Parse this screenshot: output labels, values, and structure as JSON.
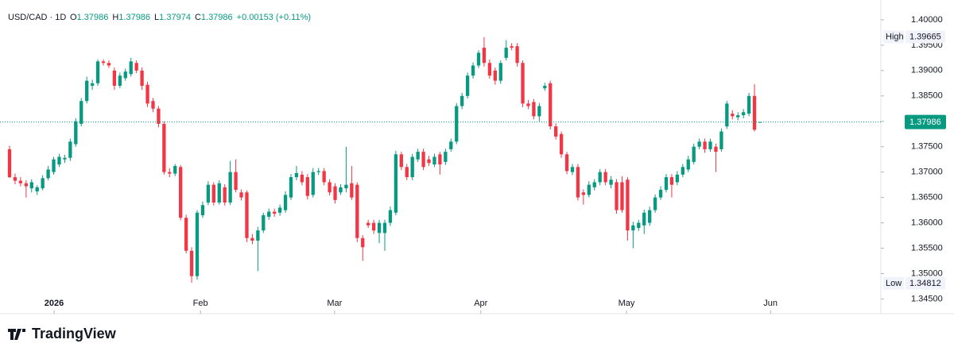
{
  "chart_data": {
    "type": "candlestick",
    "symbol": "USD/CAD · 1D",
    "ohlc_header": [
      {
        "label": "O",
        "value": 1.37986
      },
      {
        "label": "H",
        "value": 1.37986
      },
      {
        "label": "L",
        "value": 1.37974
      },
      {
        "label": "C",
        "value": 1.37986
      }
    ],
    "change": "+0.00153 (+0.11%)",
    "up_color": "#089981",
    "down_color": "#f23645",
    "open": [
      1.3745,
      1.369,
      1.3683,
      1.3678,
      1.3668,
      1.3662,
      1.3668,
      1.3688,
      1.37,
      1.3715,
      1.3725,
      1.3728,
      1.3755,
      1.3795,
      1.384,
      1.387,
      1.3875,
      1.3918,
      1.3915,
      1.39,
      1.387,
      1.3885,
      1.3893,
      1.3915,
      1.39,
      1.3872,
      1.384,
      1.3825,
      1.3795,
      1.37,
      1.3697,
      1.371,
      1.361,
      1.3545,
      1.3495,
      1.3615,
      1.364,
      1.3675,
      1.364,
      1.367,
      1.364,
      1.37,
      1.366,
      1.366,
      1.357,
      1.3565,
      1.3585,
      1.3612,
      1.3622,
      1.362,
      1.3625,
      1.365,
      1.369,
      1.3695,
      1.369,
      1.3655,
      1.37,
      1.3702,
      1.368,
      1.3672,
      1.366,
      1.3668,
      1.3678,
      1.3675,
      1.357,
      1.36,
      1.36,
      1.358,
      1.358,
      1.36,
      1.362,
      1.3735,
      1.371,
      1.369,
      1.3725,
      1.374,
      1.3725,
      1.3715,
      1.3735,
      1.372,
      1.3745,
      1.376,
      1.383,
      1.385,
      1.389,
      1.391,
      1.3945,
      1.3915,
      1.39,
      1.388,
      1.3925,
      1.3948,
      1.3948,
      1.3915,
      1.3835,
      1.3838,
      1.381,
      1.3865,
      1.3875,
      1.379,
      1.3775,
      1.3735,
      1.37,
      1.371,
      1.366,
      1.3655,
      1.367,
      1.368,
      1.37,
      1.3675,
      1.368,
      1.368,
      1.3685,
      1.3585,
      1.359,
      1.3595,
      1.36,
      1.3625,
      1.365,
      1.3665,
      1.369,
      1.368,
      1.3695,
      1.3705,
      1.372,
      1.375,
      1.376,
      1.3745,
      1.375,
      1.3745,
      1.379,
      1.3815,
      1.3808,
      1.3812,
      1.3815,
      1.385,
      1.37986
    ],
    "high": [
      1.3752,
      1.3697,
      1.369,
      1.3684,
      1.3686,
      1.3674,
      1.3694,
      1.3712,
      1.373,
      1.3736,
      1.3734,
      1.3766,
      1.3806,
      1.3846,
      1.3888,
      1.3882,
      1.3922,
      1.3922,
      1.392,
      1.3906,
      1.3896,
      1.3904,
      1.3925,
      1.392,
      1.3906,
      1.3878,
      1.3846,
      1.383,
      1.38,
      1.3708,
      1.3716,
      1.3714,
      1.3616,
      1.3552,
      1.3625,
      1.3642,
      1.3682,
      1.368,
      1.3684,
      1.3676,
      1.3722,
      1.3725,
      1.3666,
      1.3664,
      1.3578,
      1.3592,
      1.362,
      1.3628,
      1.3628,
      1.3636,
      1.3662,
      1.3696,
      1.3712,
      1.3702,
      1.3696,
      1.3708,
      1.3708,
      1.3708,
      1.3686,
      1.3678,
      1.3676,
      1.375,
      1.3712,
      1.368,
      1.3576,
      1.3606,
      1.3606,
      1.3606,
      1.3606,
      1.3632,
      1.3742,
      1.374,
      1.3716,
      1.3736,
      1.3746,
      1.3746,
      1.3732,
      1.3736,
      1.374,
      1.3746,
      1.3766,
      1.3836,
      1.3856,
      1.3896,
      1.3916,
      1.394,
      1.3966,
      1.3922,
      1.3906,
      1.392,
      1.396,
      1.3954,
      1.3954,
      1.392,
      1.3842,
      1.3844,
      1.3836,
      1.3876,
      1.388,
      1.3796,
      1.378,
      1.374,
      1.3716,
      1.3716,
      1.3666,
      1.3682,
      1.3686,
      1.3706,
      1.3706,
      1.3692,
      1.3686,
      1.3692,
      1.369,
      1.3602,
      1.3606,
      1.3626,
      1.3632,
      1.3656,
      1.3672,
      1.3696,
      1.3696,
      1.3702,
      1.3716,
      1.3732,
      1.3756,
      1.3766,
      1.3766,
      1.3766,
      1.3756,
      1.3786,
      1.384,
      1.3822,
      1.3818,
      1.3824,
      1.3856,
      1.3873,
      1.37986
    ],
    "low": [
      1.3688,
      1.3676,
      1.3672,
      1.365,
      1.366,
      1.3655,
      1.3664,
      1.3684,
      1.3695,
      1.371,
      1.3718,
      1.3722,
      1.375,
      1.379,
      1.3835,
      1.3862,
      1.387,
      1.391,
      1.3905,
      1.3862,
      1.3865,
      1.388,
      1.3888,
      1.3895,
      1.3862,
      1.3828,
      1.3818,
      1.3788,
      1.3695,
      1.369,
      1.3692,
      1.3605,
      1.354,
      1.3482,
      1.3488,
      1.361,
      1.3635,
      1.3634,
      1.3636,
      1.3634,
      1.3635,
      1.366,
      1.3644,
      1.3562,
      1.3558,
      1.3505,
      1.358,
      1.3606,
      1.3612,
      1.3614,
      1.362,
      1.3645,
      1.3684,
      1.3674,
      1.3646,
      1.365,
      1.3694,
      1.3674,
      1.3654,
      1.3638,
      1.3655,
      1.366,
      1.3645,
      1.3562,
      1.3525,
      1.359,
      1.3578,
      1.356,
      1.3545,
      1.3594,
      1.3615,
      1.3704,
      1.3684,
      1.3684,
      1.372,
      1.3704,
      1.3712,
      1.371,
      1.3695,
      1.3714,
      1.374,
      1.3755,
      1.3824,
      1.3845,
      1.3884,
      1.3905,
      1.3908,
      1.3884,
      1.3872,
      1.3874,
      1.392,
      1.394,
      1.3908,
      1.3828,
      1.3824,
      1.3804,
      1.38,
      1.386,
      1.3784,
      1.3764,
      1.3728,
      1.3696,
      1.3694,
      1.3644,
      1.3636,
      1.365,
      1.3664,
      1.3674,
      1.3674,
      1.3668,
      1.3618,
      1.362,
      1.3565,
      1.355,
      1.3584,
      1.3578,
      1.3594,
      1.362,
      1.3645,
      1.366,
      1.365,
      1.3674,
      1.369,
      1.37,
      1.3715,
      1.3745,
      1.3738,
      1.374,
      1.37,
      1.374,
      1.3785,
      1.3804,
      1.3802,
      1.3806,
      1.381,
      1.378,
      1.37974
    ],
    "close": [
      1.369,
      1.3683,
      1.3678,
      1.3672,
      1.368,
      1.367,
      1.3688,
      1.3705,
      1.3725,
      1.373,
      1.3728,
      1.376,
      1.38,
      1.384,
      1.388,
      1.3875,
      1.3918,
      1.3915,
      1.391,
      1.387,
      1.389,
      1.3898,
      1.3918,
      1.39,
      1.387,
      1.3835,
      1.3825,
      1.3795,
      1.37,
      1.3697,
      1.3712,
      1.361,
      1.3545,
      1.3495,
      1.362,
      1.3635,
      1.3675,
      1.364,
      1.3678,
      1.364,
      1.37,
      1.3665,
      1.365,
      1.357,
      1.3565,
      1.3585,
      1.3615,
      1.3622,
      1.3618,
      1.363,
      1.3655,
      1.369,
      1.3698,
      1.368,
      1.3653,
      1.37,
      1.3702,
      1.368,
      1.366,
      1.3645,
      1.367,
      1.3675,
      1.365,
      1.357,
      1.3552,
      1.3595,
      1.3585,
      1.36,
      1.36,
      1.3625,
      1.3735,
      1.371,
      1.369,
      1.373,
      1.374,
      1.371,
      1.3718,
      1.373,
      1.3715,
      1.374,
      1.376,
      1.383,
      1.385,
      1.389,
      1.391,
      1.3935,
      1.3915,
      1.389,
      1.388,
      1.3915,
      1.3945,
      1.3945,
      1.3915,
      1.3835,
      1.383,
      1.381,
      1.383,
      1.387,
      1.379,
      1.377,
      1.3735,
      1.3702,
      1.371,
      1.365,
      1.3655,
      1.3675,
      1.368,
      1.37,
      1.368,
      1.3685,
      1.3625,
      1.3625,
      1.3585,
      1.3595,
      1.36,
      1.362,
      1.3625,
      1.365,
      1.3665,
      1.369,
      1.3675,
      1.3695,
      1.371,
      1.3725,
      1.375,
      1.376,
      1.3745,
      1.376,
      1.374,
      1.378,
      1.3835,
      1.381,
      1.3812,
      1.3818,
      1.385,
      1.37833,
      1.37986
    ],
    "xlim": [
      -1.73,
      157.9
    ],
    "xticks": [
      {
        "value": 8.07,
        "label": "2026"
      },
      {
        "value": 34.6,
        "label": "Feb"
      },
      {
        "value": 58.9,
        "label": "Mar"
      },
      {
        "value": 85.4,
        "label": "Apr"
      },
      {
        "value": 111.8,
        "label": "May"
      },
      {
        "value": 137.9,
        "label": "Jun"
      }
    ],
    "ylim": [
      1.3421,
      1.4039
    ],
    "yticks": [
      {
        "value": 1.345,
        "label": "1.34500"
      },
      {
        "value": 1.35,
        "label": "1.35000"
      },
      {
        "value": 1.355,
        "label": "1.35500"
      },
      {
        "value": 1.36,
        "label": "1.36000"
      },
      {
        "value": 1.365,
        "label": "1.36500"
      },
      {
        "value": 1.37,
        "label": "1.37000"
      },
      {
        "value": 1.375,
        "label": "1.37500"
      },
      {
        "value": 1.38,
        "label": "1.38000"
      },
      {
        "value": 1.385,
        "label": "1.38500"
      },
      {
        "value": 1.39,
        "label": "1.39000"
      },
      {
        "value": 1.395,
        "label": "1.39500"
      },
      {
        "value": 1.4,
        "label": "1.40000"
      }
    ],
    "high_marker": {
      "label": "High",
      "value": 1.39665
    },
    "low_marker": {
      "label": "Low",
      "value": 1.34812
    },
    "last_price": 1.37986,
    "brand": "TradingView"
  }
}
